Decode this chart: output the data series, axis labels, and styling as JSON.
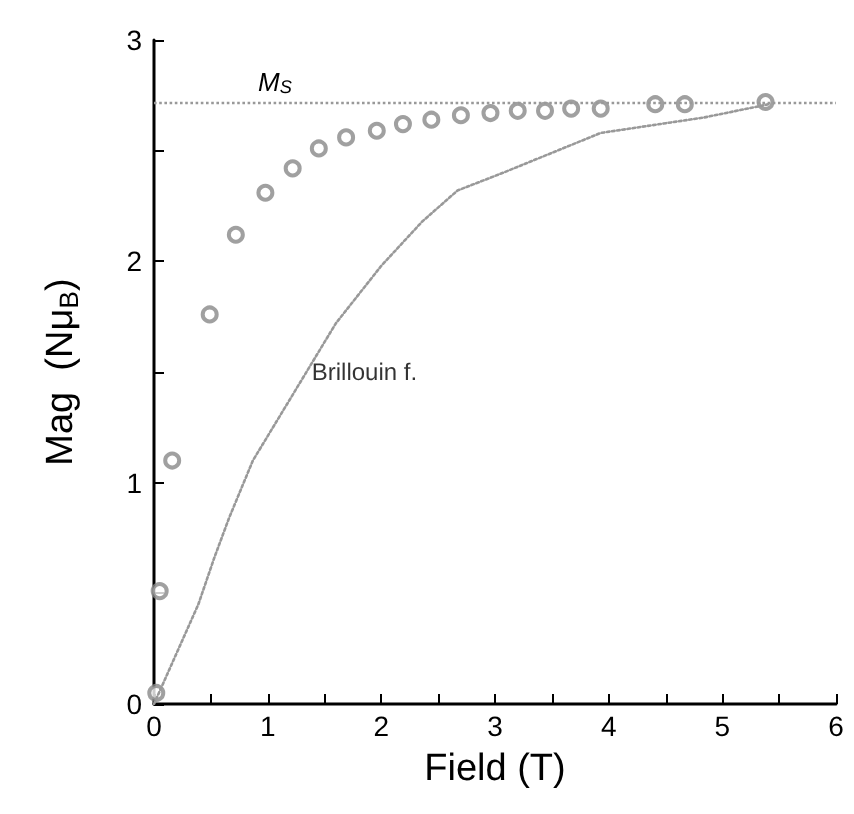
{
  "chart_data": {
    "type": "scatter",
    "xlabel": "Field (T)",
    "ylabel": "Mag  (Nμ$_{B}$)",
    "xlim": [
      0,
      6
    ],
    "ylim": [
      0,
      3
    ],
    "xticks": [
      0,
      {
        "value": 0.5,
        "label": null
      },
      1,
      {
        "value": 1.5,
        "label": null
      },
      2,
      {
        "value": 2.5,
        "label": null
      },
      3,
      {
        "value": 3.5,
        "label": null
      },
      4,
      {
        "value": 4.5,
        "label": null
      },
      5,
      {
        "value": 5.5,
        "label": null
      },
      6
    ],
    "yticks": [
      0,
      {
        "value": 0.5,
        "label": null
      },
      1,
      {
        "value": 1.5,
        "label": null
      },
      2,
      {
        "value": 2.5,
        "label": null
      },
      3
    ],
    "grid": false,
    "series": [
      {
        "marker": "circle",
        "color": "#888888",
        "x": [
          0.02,
          0.05,
          0.16,
          0.49,
          0.72,
          0.98,
          1.22,
          1.45,
          1.69,
          1.96,
          2.19,
          2.44,
          2.7,
          2.96,
          3.2,
          3.44,
          3.67,
          3.93,
          4.41,
          4.67,
          5.38
        ],
        "values": [
          0.05,
          0.51,
          1.1,
          1.76,
          2.12,
          2.31,
          2.42,
          2.51,
          2.56,
          2.59,
          2.62,
          2.64,
          2.66,
          2.67,
          2.68,
          2.68,
          2.69,
          2.69,
          2.71,
          2.71,
          2.72
        ]
      },
      {
        "type": "line",
        "line_style": "dotted",
        "marker": "none",
        "color": "#999999",
        "x": [
          0,
          0.39,
          0.53,
          0.66,
          0.87,
          1.2,
          1.6,
          2.0,
          2.36,
          2.67,
          3.07,
          3.93,
          4.84,
          5.41
        ],
        "values": [
          0,
          0.45,
          0.66,
          0.84,
          1.1,
          1.38,
          1.72,
          1.98,
          2.18,
          2.32,
          2.4,
          2.58,
          2.65,
          2.71
        ]
      }
    ],
    "ref_lines": [
      {
        "axis": "y",
        "value": 2.72,
        "label": "M$_{S}$",
        "color": "#999999",
        "line_style": "dotted"
      }
    ],
    "annotations": [
      {
        "text": "Brillouin f.",
        "x": 1.3,
        "y": 1.5
      }
    ]
  }
}
